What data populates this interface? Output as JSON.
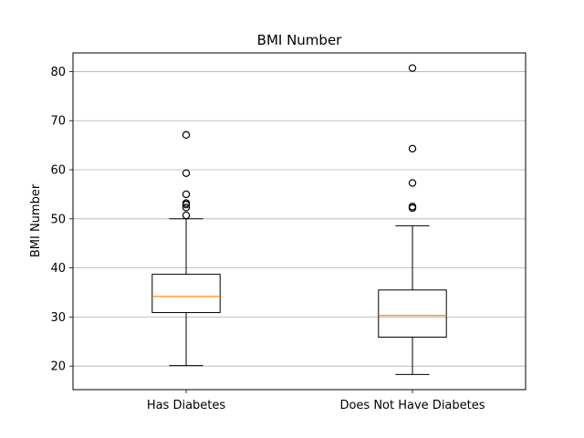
{
  "chart_data": {
    "type": "box",
    "title": "BMI Number",
    "xlabel": "",
    "ylabel": "BMI Number",
    "ylim": [
      15.2,
      83.8
    ],
    "yticks": [
      20,
      30,
      40,
      50,
      60,
      70,
      80
    ],
    "grid": "y",
    "categories": [
      "Has Diabetes",
      "Does Not Have Diabetes"
    ],
    "boxes": [
      {
        "category": "Has Diabetes",
        "whisker_low": 20.1,
        "q1": 30.9,
        "median": 34.2,
        "q3": 38.7,
        "whisker_high": 50.0,
        "outliers": [
          50.7,
          52.3,
          52.9,
          53.2,
          55.0,
          59.3,
          67.1
        ]
      },
      {
        "category": "Does Not Have Diabetes",
        "whisker_low": 18.3,
        "q1": 25.9,
        "median": 30.3,
        "q3": 35.5,
        "whisker_high": 48.6,
        "outliers": [
          52.2,
          52.5,
          57.3,
          64.3,
          80.7
        ]
      }
    ],
    "colors": {
      "box": "#000000",
      "median": "#ff7f0e",
      "grid": "#b0b0b0"
    }
  }
}
